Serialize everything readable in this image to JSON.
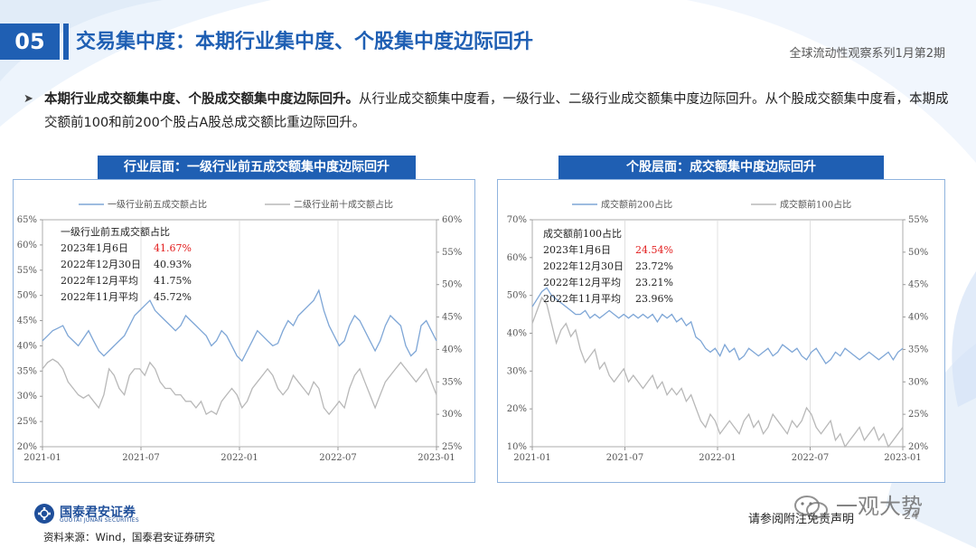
{
  "header": {
    "section_number": "05",
    "title": "交易集中度：本期行业集中度、个股集中度边际回升",
    "series": "全球流动性观察系列1月第2期"
  },
  "bullet": {
    "bold": "本期行业成交额集中度、个股成交额集中度边际回升。",
    "text": "从行业成交额集中度看，一级行业、二级行业成交额集中度边际回升。从个股成交额集中度看，本期成交额前100和前200个股占A股总成交额比重边际回升。"
  },
  "left_panel_title": "行业层面：一级行业前五成交额集中度边际回升",
  "right_panel_title": "个股层面：成交额集中度边际回升",
  "footer": {
    "logo_cn": "国泰君安证券",
    "logo_en": "GUOTAI JUNAN SECURITIES",
    "source": "资料来源：Wind，国泰君安证券研究",
    "note": "请参阅附注免责声明",
    "page": "24",
    "watermark": "一观大势"
  },
  "colors": {
    "primary": "#1f5fb3",
    "series_blue": "#7ea6d6",
    "series_gray": "#b8b8b8",
    "highlight_red": "#e21b1b"
  },
  "chart_data": [
    {
      "type": "line",
      "x_ticks": [
        "2021-01",
        "2021-07",
        "2022-01",
        "2022-07",
        "2023-01"
      ],
      "y_left_ticks": [
        "20%",
        "25%",
        "30%",
        "35%",
        "40%",
        "45%",
        "50%",
        "55%",
        "60%",
        "65%"
      ],
      "y_right_ticks": [
        "25%",
        "30%",
        "35%",
        "40%",
        "45%",
        "50%",
        "55%",
        "60%"
      ],
      "ylim_left": [
        20,
        65
      ],
      "ylim_right": [
        25,
        60
      ],
      "series": [
        {
          "name": "一级行业前五成交额占比",
          "axis": "left",
          "values": [
            41,
            42,
            43,
            43.5,
            44,
            42,
            41,
            40,
            41.5,
            43,
            41,
            39,
            38,
            39,
            40,
            41,
            42,
            44,
            46,
            47,
            48,
            49,
            47,
            46,
            45,
            44,
            43,
            44,
            46,
            45,
            44,
            43,
            42,
            40,
            41,
            43,
            42,
            40,
            38,
            37,
            39,
            41,
            43,
            42,
            41,
            40,
            40.5,
            43,
            45,
            44,
            46,
            47,
            48,
            49,
            51,
            47,
            44,
            42,
            40,
            41,
            44,
            46,
            45,
            43,
            41,
            39,
            41,
            44,
            46,
            45,
            44,
            40,
            38,
            39,
            44,
            45,
            43,
            41
          ]
        },
        {
          "name": "二级行业前十成交额占比",
          "axis": "right",
          "values": [
            37,
            38,
            38.5,
            38,
            37,
            35,
            34,
            33,
            32.5,
            33,
            32,
            31,
            33,
            37,
            36,
            34,
            33,
            36,
            37,
            37,
            36,
            38,
            37,
            35,
            34,
            34,
            33,
            33,
            32,
            32,
            31,
            32,
            30,
            30.5,
            30,
            32,
            33,
            34,
            33,
            31,
            32,
            34,
            35,
            36,
            37,
            36,
            34,
            33,
            34,
            36,
            35,
            34,
            33,
            35,
            34,
            31,
            30,
            31,
            32,
            31,
            34,
            36,
            37,
            35,
            33,
            31,
            33,
            35,
            36,
            37,
            38,
            37,
            36,
            35,
            36,
            37,
            35,
            33
          ]
        }
      ],
      "annotation": {
        "title": "一级行业前五成交额占比",
        "rows": [
          {
            "label": "2023年1月6日",
            "value": "41.67%",
            "highlight": true
          },
          {
            "label": "2022年12月30日",
            "value": "40.93%",
            "highlight": false
          },
          {
            "label": "2022年12月平均",
            "value": "41.75%",
            "highlight": false
          },
          {
            "label": "2022年11月平均",
            "value": "45.72%",
            "highlight": false
          }
        ]
      }
    },
    {
      "type": "line",
      "x_ticks": [
        "2021-01",
        "2021-07",
        "2022-01",
        "2022-07",
        "2023-01"
      ],
      "y_left_ticks": [
        "10%",
        "20%",
        "30%",
        "40%",
        "50%",
        "60%",
        "70%"
      ],
      "y_right_ticks": [
        "20%",
        "25%",
        "30%",
        "35%",
        "40%",
        "45%",
        "50%",
        "55%"
      ],
      "ylim_left": [
        10,
        70
      ],
      "ylim_right": [
        20,
        55
      ],
      "series": [
        {
          "name": "成交额前200占比",
          "axis": "left",
          "values": [
            47,
            49,
            51,
            52,
            50,
            49,
            48,
            47,
            46,
            45,
            45,
            46,
            44,
            45,
            44,
            45,
            46,
            45,
            44,
            45,
            44,
            45,
            44,
            45,
            44,
            45,
            43,
            45,
            44,
            45,
            43,
            44,
            42,
            43,
            39,
            38,
            36,
            35,
            36,
            34,
            37,
            35,
            36,
            33,
            34,
            36,
            35,
            34,
            35,
            36,
            34,
            35,
            37,
            36,
            35,
            36,
            34,
            33,
            35,
            36,
            34,
            32,
            33,
            35,
            34,
            36,
            35,
            34,
            33,
            34,
            35,
            34,
            33,
            34,
            35,
            33,
            35,
            36
          ]
        },
        {
          "name": "成交额前100占比",
          "axis": "right",
          "values": [
            39,
            41,
            43,
            42,
            39,
            36,
            38,
            39,
            37,
            38,
            35,
            33,
            34,
            35,
            32,
            33,
            31,
            30,
            31,
            32,
            30,
            31,
            30,
            29,
            30,
            31,
            29,
            30,
            28,
            29,
            28,
            29,
            27,
            28,
            26,
            24,
            23,
            25,
            24,
            22,
            23,
            24,
            23,
            22,
            24,
            25,
            23,
            24,
            22,
            23,
            25,
            24,
            23,
            22,
            24,
            23,
            24,
            26,
            25,
            23,
            22,
            23,
            24,
            21,
            22,
            20,
            21,
            22,
            23,
            21,
            22,
            23,
            21,
            22,
            20,
            21,
            22,
            23
          ]
        }
      ],
      "annotation": {
        "title": "成交额前100占比",
        "rows": [
          {
            "label": "2023年1月6日",
            "value": "24.54%",
            "highlight": true
          },
          {
            "label": "2022年12月30日",
            "value": "23.72%",
            "highlight": false
          },
          {
            "label": "2022年12月平均",
            "value": "23.21%",
            "highlight": false
          },
          {
            "label": "2022年11月平均",
            "value": "23.96%",
            "highlight": false
          }
        ]
      }
    }
  ]
}
